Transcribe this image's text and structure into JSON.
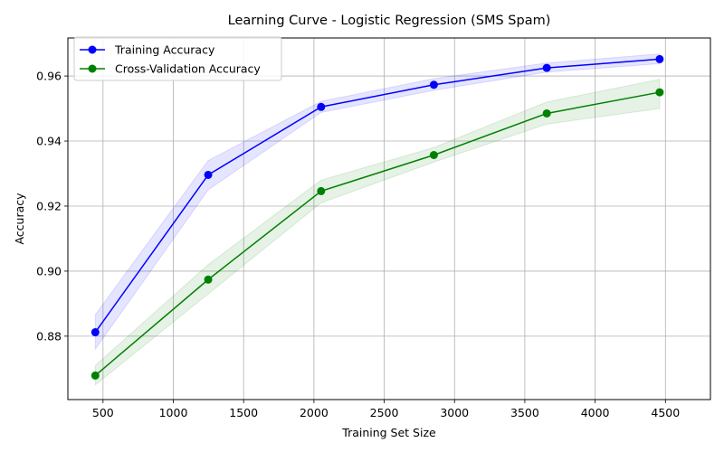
{
  "chart_data": {
    "type": "line",
    "title": "Learning Curve - Logistic Regression (SMS Spam)",
    "xlabel": "Training Set Size",
    "ylabel": "Accuracy",
    "xlim": [
      250,
      4820
    ],
    "ylim": [
      0.8605,
      0.9717
    ],
    "xticks": [
      500,
      1000,
      1500,
      2000,
      2500,
      3000,
      3500,
      4000,
      4500
    ],
    "yticks": [
      0.88,
      0.9,
      0.92,
      0.94,
      0.96
    ],
    "grid": true,
    "legend_position": "top-left",
    "x": [
      445,
      1248,
      2051,
      2853,
      3656,
      4459
    ],
    "series": [
      {
        "name": "Training Accuracy",
        "color": "#0000ff",
        "values": [
          0.8812,
          0.9296,
          0.9505,
          0.9573,
          0.9625,
          0.9652
        ],
        "lower": [
          0.876,
          0.925,
          0.9488,
          0.9556,
          0.9612,
          0.9638
        ],
        "upper": [
          0.8866,
          0.934,
          0.9522,
          0.9592,
          0.964,
          0.9668
        ]
      },
      {
        "name": "Cross-Validation Accuracy",
        "color": "#008000",
        "values": [
          0.8679,
          0.8974,
          0.9246,
          0.9357,
          0.9485,
          0.955
        ],
        "lower": [
          0.865,
          0.893,
          0.921,
          0.9335,
          0.9452,
          0.95
        ],
        "upper": [
          0.871,
          0.902,
          0.928,
          0.938,
          0.952,
          0.959
        ]
      }
    ]
  }
}
